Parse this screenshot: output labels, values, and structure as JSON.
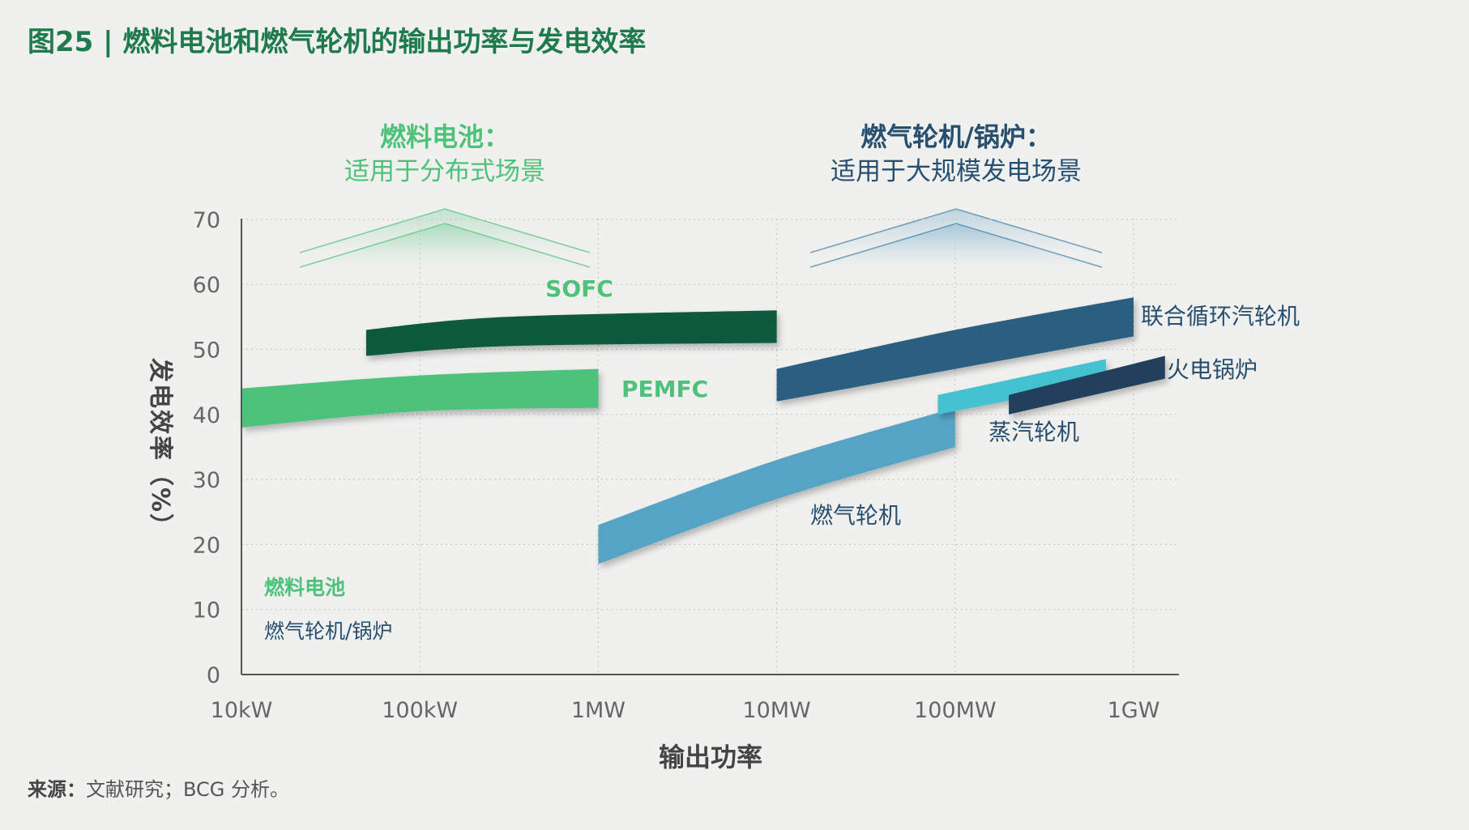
{
  "title": "图25 | 燃料电池和燃气轮机的输出功率与发电效率",
  "source": {
    "label": "来源：",
    "text": "文献研究；BCG 分析。"
  },
  "regions": [
    {
      "title": "燃料电池：",
      "subtitle": "适用于分布式场景",
      "color": "#4ec27a"
    },
    {
      "title": "燃气轮机/锅炉：",
      "subtitle": "适用于大规模发电场景",
      "color": "#274f70"
    }
  ],
  "legend": [
    {
      "label": "燃料电池",
      "color": "#4ec27a"
    },
    {
      "label": "燃气轮机/锅炉",
      "color": "#274f70"
    }
  ],
  "chart_data": {
    "type": "area",
    "xlabel": "输出功率",
    "ylabel": "发电效率（%）",
    "x_scale": "log",
    "x_ticks": [
      "10kW",
      "100kW",
      "1MW",
      "10MW",
      "100MW",
      "1GW"
    ],
    "x_tick_values_kw": [
      10,
      100,
      1000,
      10000,
      100000,
      1000000
    ],
    "xlim_kw": [
      10,
      3000000
    ],
    "ylim": [
      0,
      70
    ],
    "y_ticks": [
      0,
      10,
      20,
      30,
      40,
      50,
      60,
      70
    ],
    "grid": true,
    "series": [
      {
        "name": "SOFC",
        "color": "#0a5a3e",
        "x_kw": [
          50,
          300,
          10000
        ],
        "upper": [
          53,
          55,
          56
        ],
        "lower": [
          49,
          50.5,
          51
        ]
      },
      {
        "name": "PEMFC",
        "color": "#4ec27a",
        "x_kw": [
          10,
          100,
          1000
        ],
        "upper": [
          44,
          46,
          47
        ],
        "lower": [
          38,
          40.5,
          41
        ]
      },
      {
        "name": "联合循环汽轮机",
        "color": "#2a5f80",
        "x_kw": [
          10000,
          100000,
          1000000
        ],
        "upper": [
          47,
          53,
          58
        ],
        "lower": [
          42,
          47,
          52
        ]
      },
      {
        "name": "燃气轮机",
        "color": "#54a4c6",
        "x_kw": [
          1000,
          10000,
          100000
        ],
        "upper": [
          23,
          33,
          41
        ],
        "lower": [
          17,
          27,
          35
        ]
      },
      {
        "name": "蒸汽轮机",
        "color": "#45c2d0",
        "x_kw": [
          80000,
          700000
        ],
        "upper": [
          43,
          48.5
        ],
        "lower": [
          40,
          45
        ]
      },
      {
        "name": "火电锅炉",
        "color": "#233f5c",
        "x_kw": [
          200000,
          1500000
        ],
        "upper": [
          43,
          49
        ],
        "lower": [
          40,
          45.5
        ]
      }
    ]
  }
}
